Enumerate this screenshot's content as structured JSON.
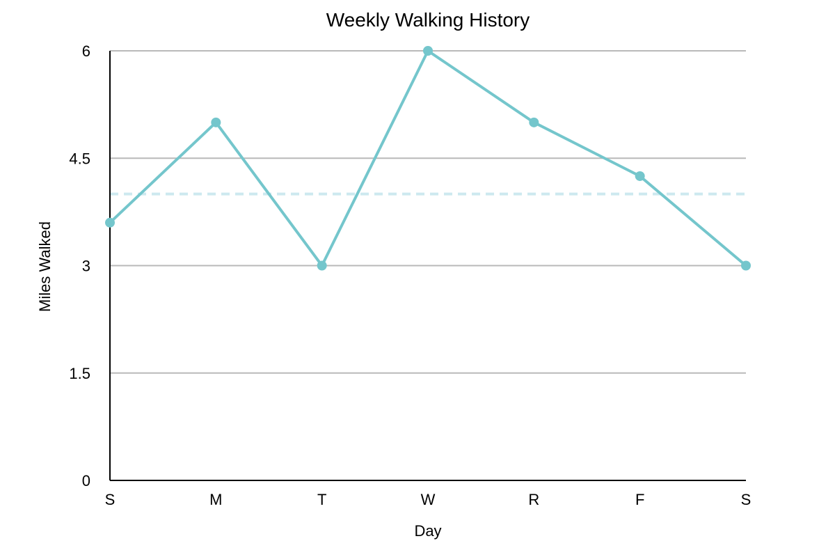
{
  "chart_data": {
    "type": "line",
    "title": "Weekly Walking History",
    "xlabel": "Day",
    "ylabel": "Miles Walked",
    "categories": [
      "S",
      "M",
      "T",
      "W",
      "R",
      "F",
      "S"
    ],
    "series": [
      {
        "values": [
          3.6,
          5.0,
          3.0,
          6.0,
          5.0,
          4.25,
          3.0
        ],
        "color": "#74c6cc"
      }
    ],
    "reference_line": {
      "value": 4.0,
      "color": "#cde9ef",
      "style": "dashed"
    },
    "ylim": [
      0,
      6
    ],
    "yticks": [
      0,
      1.5,
      3,
      4.5,
      6
    ],
    "ytick_labels": [
      "0",
      "1.5",
      "3",
      "4.5",
      "6"
    ],
    "grid": true,
    "grid_color": "#b9b9b9",
    "legend": "none"
  }
}
